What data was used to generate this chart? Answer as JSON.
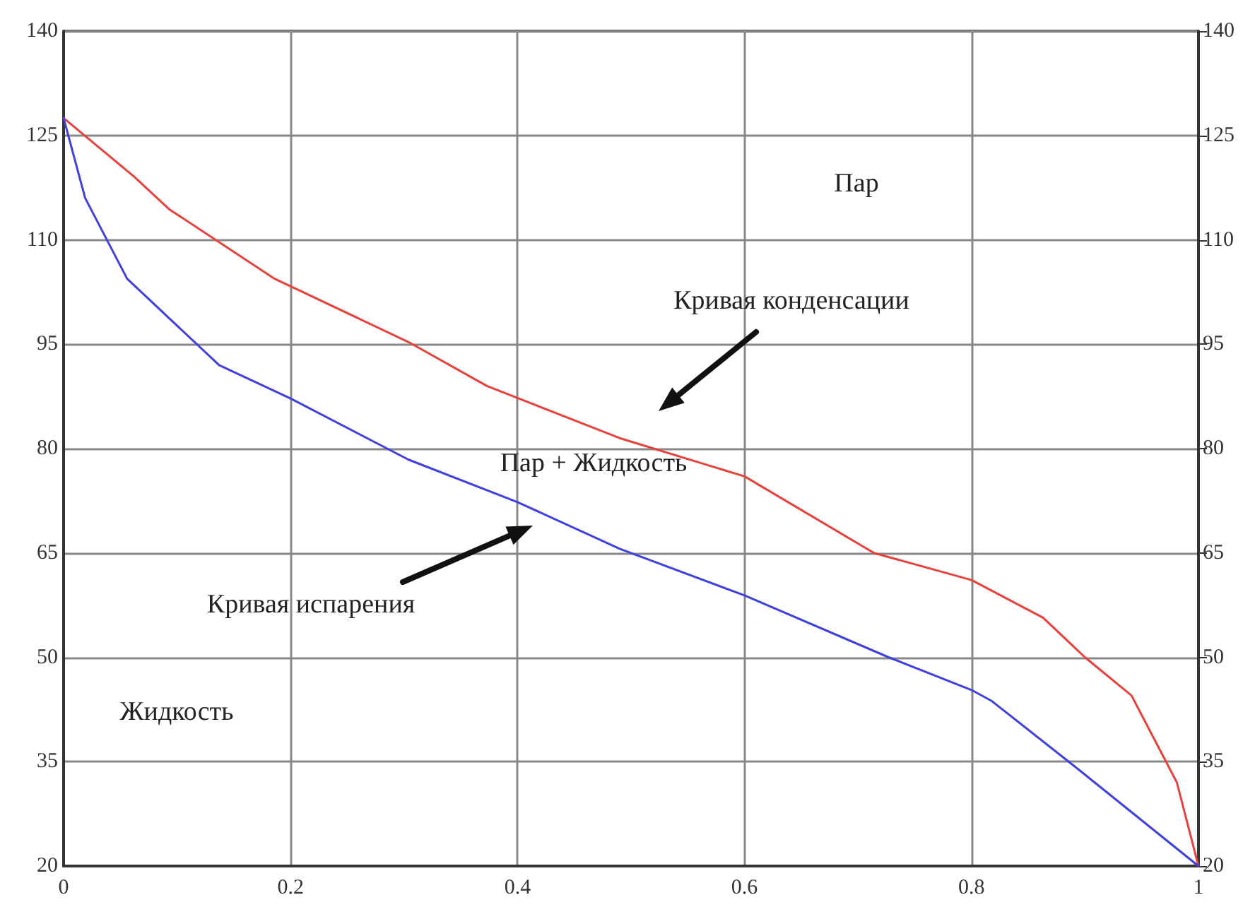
{
  "chart_data": {
    "type": "line",
    "series": [
      {
        "color": "#e8413c",
        "x": [
          0,
          0.062,
          0.093,
          0.186,
          0.304,
          0.373,
          0.49,
          0.6,
          0.714,
          0.8,
          0.863,
          0.9,
          0.941,
          0.981,
          1
        ],
        "values": [
          127.5,
          119.1,
          114.4,
          104.4,
          95.3,
          89,
          81.5,
          76,
          65,
          61.1,
          55.7,
          50,
          44.5,
          32,
          20
        ]
      },
      {
        "color": "#4040e0",
        "x": [
          0,
          0.019,
          0.056,
          0.137,
          0.2,
          0.304,
          0.4,
          0.49,
          0.6,
          0.727,
          0.8,
          0.818,
          0.888,
          1
        ],
        "values": [
          127.5,
          116,
          104.4,
          92,
          87.2,
          78.4,
          72.3,
          65.6,
          58.9,
          50,
          45.3,
          43.7,
          34.7,
          20
        ]
      }
    ],
    "xlim": [
      0,
      1
    ],
    "xticks": [
      0,
      0.2,
      0.4,
      0.6,
      0.8,
      1
    ],
    "ylim": [
      20,
      140
    ],
    "yticks": [
      20,
      35,
      50,
      65,
      80,
      95,
      110,
      125,
      140
    ],
    "y2lim": [
      20,
      140
    ],
    "y2ticks": [
      20,
      35,
      50,
      65,
      80,
      95,
      110,
      125,
      140
    ],
    "grid": true,
    "marker": "none",
    "line_style": "solid",
    "annotations": [
      "Пар",
      "Кривая конденсации",
      "Пар + Жидкость",
      "Кривая испарения",
      "Жидкость"
    ]
  }
}
